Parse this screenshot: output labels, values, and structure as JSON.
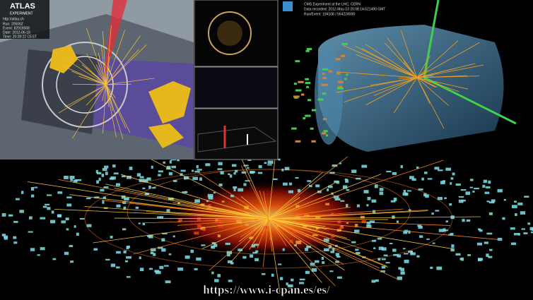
{
  "atlas_panel": {
    "logo": "ATLAS",
    "subtitle": "EXPERIMENT",
    "url": "http://atlas.ch",
    "info": [
      "Run: 205062",
      "Event: 82919568",
      "Date: 2012-06-18",
      "Time: 20:28:22 CEST"
    ]
  },
  "cms_panel": {
    "lines": [
      "CMS Experiment at the LHC, CERN",
      "Data recorded: 2012-May-13 20:08:14.621490 GMT",
      "Run/Event: 194108 / 564224000"
    ]
  },
  "watermark": "https://www.i-cpan.es/es/"
}
